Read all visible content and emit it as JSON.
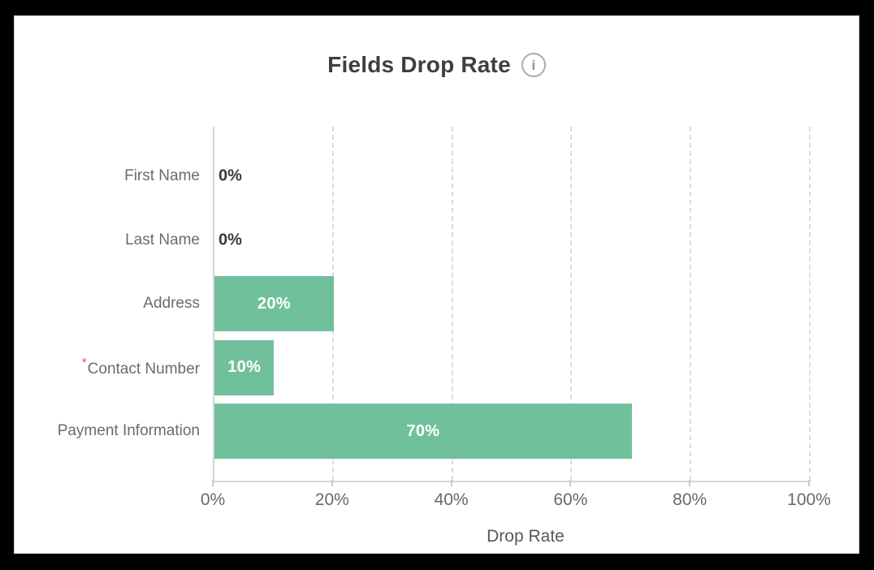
{
  "canvas": {
    "background": "#000000"
  },
  "card": {
    "background": "#ffffff",
    "border_color": "#d2d2d2"
  },
  "header": {
    "title": "Fields Drop Rate",
    "info_glyph": "i"
  },
  "chart_data": {
    "type": "bar",
    "orientation": "horizontal",
    "title": "Fields Drop Rate",
    "categories": [
      "First Name",
      "Last Name",
      "Address",
      "Contact Number",
      "Payment Information"
    ],
    "values": [
      0,
      0,
      20,
      10,
      70
    ],
    "value_labels": [
      "0%",
      "0%",
      "20%",
      "10%",
      "70%"
    ],
    "required_flags": [
      false,
      false,
      false,
      true,
      false
    ],
    "required_marker": "*",
    "xlabel": "Drop Rate",
    "x_ticks": [
      "0%",
      "20%",
      "40%",
      "60%",
      "80%",
      "100%"
    ],
    "xlim": [
      0,
      100
    ],
    "grid": "vertical-dashed",
    "legend": "none",
    "bar_color": "#71c09c",
    "value_label_color_inside": "#ffffff",
    "value_label_color_zero": "#3a3a3a",
    "required_marker_color": "#dd5145",
    "axis_line_color": "#d6d6d6"
  }
}
